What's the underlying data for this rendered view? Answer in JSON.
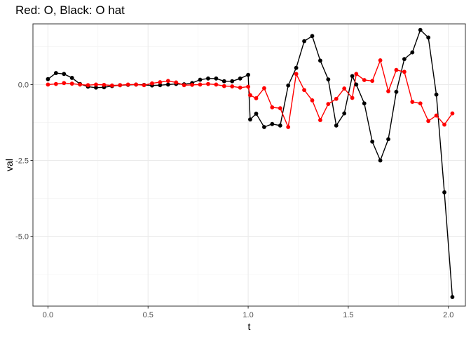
{
  "chart_data": {
    "type": "line",
    "title": "Red: O, Black: O hat",
    "xlabel": "t",
    "ylabel": "val",
    "xlim": [
      -0.075,
      2.085
    ],
    "ylim": [
      -7.3,
      2.0
    ],
    "x_ticks": [
      0.0,
      0.5,
      1.0,
      1.5,
      2.0
    ],
    "x_tick_labels": [
      "0.0",
      "0.5",
      "1.0",
      "1.5",
      "2.0"
    ],
    "y_ticks": [
      0.0,
      -2.5,
      -5.0
    ],
    "y_tick_labels": [
      "0.0",
      "-2.5",
      "-5.0"
    ],
    "grid": true,
    "series": [
      {
        "color": "#000000",
        "points": [
          [
            0.0,
            0.18
          ],
          [
            0.04,
            0.38
          ],
          [
            0.08,
            0.35
          ],
          [
            0.12,
            0.22
          ],
          [
            0.16,
            0.02
          ],
          [
            0.2,
            -0.07
          ],
          [
            0.24,
            -0.1
          ],
          [
            0.28,
            -0.09
          ],
          [
            0.32,
            -0.05
          ],
          [
            0.36,
            -0.02
          ],
          [
            0.4,
            -0.01
          ],
          [
            0.44,
            0.0
          ],
          [
            0.48,
            -0.01
          ],
          [
            0.52,
            -0.03
          ],
          [
            0.56,
            -0.02
          ],
          [
            0.6,
            0.0
          ],
          [
            0.64,
            0.02
          ],
          [
            0.68,
            0.01
          ],
          [
            0.72,
            0.05
          ],
          [
            0.76,
            0.16
          ],
          [
            0.8,
            0.2
          ],
          [
            0.84,
            0.2
          ],
          [
            0.88,
            0.11
          ],
          [
            0.92,
            0.11
          ],
          [
            0.96,
            0.2
          ],
          [
            1.0,
            0.32
          ],
          [
            1.01,
            -1.15
          ],
          [
            1.04,
            -0.96
          ],
          [
            1.08,
            -1.4
          ],
          [
            1.12,
            -1.3
          ],
          [
            1.16,
            -1.35
          ],
          [
            1.2,
            -0.03
          ],
          [
            1.24,
            0.55
          ],
          [
            1.28,
            1.43
          ],
          [
            1.32,
            1.6
          ],
          [
            1.36,
            0.79
          ],
          [
            1.4,
            0.17
          ],
          [
            1.44,
            -1.35
          ],
          [
            1.48,
            -0.95
          ],
          [
            1.52,
            0.28
          ],
          [
            1.54,
            0.0
          ],
          [
            1.58,
            -0.62
          ],
          [
            1.62,
            -1.88
          ],
          [
            1.66,
            -2.5
          ],
          [
            1.7,
            -1.8
          ],
          [
            1.74,
            -0.24
          ],
          [
            1.78,
            0.84
          ],
          [
            1.82,
            1.06
          ],
          [
            1.86,
            1.8
          ],
          [
            1.9,
            1.55
          ],
          [
            1.94,
            -0.33
          ],
          [
            1.98,
            -3.55
          ],
          [
            2.02,
            -7.0
          ]
        ]
      },
      {
        "color": "#ff0000",
        "points": [
          [
            0.0,
            0.0
          ],
          [
            0.04,
            0.02
          ],
          [
            0.08,
            0.05
          ],
          [
            0.12,
            0.03
          ],
          [
            0.16,
            0.0
          ],
          [
            0.2,
            -0.02
          ],
          [
            0.24,
            0.0
          ],
          [
            0.28,
            -0.01
          ],
          [
            0.32,
            -0.03
          ],
          [
            0.36,
            -0.02
          ],
          [
            0.4,
            0.0
          ],
          [
            0.44,
            0.0
          ],
          [
            0.48,
            -0.02
          ],
          [
            0.52,
            0.04
          ],
          [
            0.56,
            0.08
          ],
          [
            0.6,
            0.12
          ],
          [
            0.64,
            0.07
          ],
          [
            0.68,
            -0.02
          ],
          [
            0.72,
            -0.01
          ],
          [
            0.76,
            0.0
          ],
          [
            0.8,
            0.02
          ],
          [
            0.84,
            0.0
          ],
          [
            0.88,
            -0.05
          ],
          [
            0.92,
            -0.06
          ],
          [
            0.96,
            -0.1
          ],
          [
            1.0,
            -0.07
          ],
          [
            1.01,
            -0.35
          ],
          [
            1.04,
            -0.45
          ],
          [
            1.08,
            -0.12
          ],
          [
            1.12,
            -0.75
          ],
          [
            1.16,
            -0.78
          ],
          [
            1.2,
            -1.4
          ],
          [
            1.24,
            0.35
          ],
          [
            1.28,
            -0.18
          ],
          [
            1.32,
            -0.52
          ],
          [
            1.36,
            -1.17
          ],
          [
            1.4,
            -0.64
          ],
          [
            1.44,
            -0.47
          ],
          [
            1.48,
            -0.13
          ],
          [
            1.52,
            -0.44
          ],
          [
            1.54,
            0.35
          ],
          [
            1.58,
            0.15
          ],
          [
            1.62,
            0.12
          ],
          [
            1.66,
            0.8
          ],
          [
            1.7,
            -0.22
          ],
          [
            1.74,
            0.48
          ],
          [
            1.78,
            0.42
          ],
          [
            1.82,
            -0.57
          ],
          [
            1.86,
            -0.62
          ],
          [
            1.9,
            -1.2
          ],
          [
            1.94,
            -1.02
          ],
          [
            1.98,
            -1.32
          ],
          [
            2.02,
            -0.95
          ]
        ]
      }
    ]
  }
}
